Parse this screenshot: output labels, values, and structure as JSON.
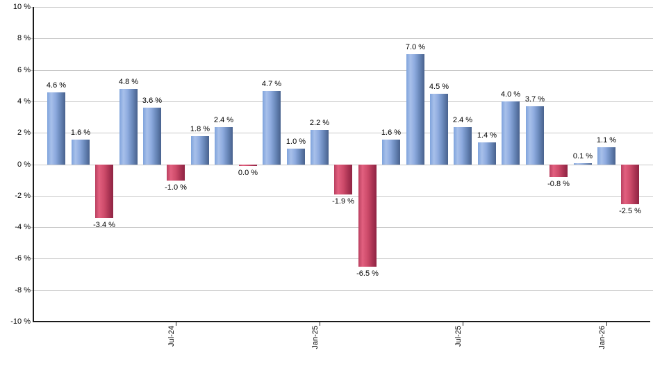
{
  "chart_data": {
    "type": "bar",
    "title": "",
    "unit": "%",
    "ylim": [
      -10,
      10
    ],
    "y_tick_step": 2,
    "grid": true,
    "legend": "none",
    "y_tick_labels": [
      "10 %",
      "8 %",
      "6 %",
      "4 %",
      "2 %",
      "0 %",
      "-2 %",
      "-4 %",
      "-6 %",
      "-8 %",
      "-10 %"
    ],
    "x_tick_labels": [
      {
        "bar_index": 5,
        "label": "Jul-24"
      },
      {
        "bar_index": 11,
        "label": "Jan-25"
      },
      {
        "bar_index": 17,
        "label": "Jul-25"
      },
      {
        "bar_index": 23,
        "label": "Jan-26"
      }
    ],
    "bars": [
      {
        "v": 4.6,
        "label": "4.6 %",
        "type": "positive"
      },
      {
        "v": 1.6,
        "label": "1.6 %",
        "type": "positive"
      },
      {
        "v": -3.4,
        "label": "-3.4 %",
        "type": "negative"
      },
      {
        "v": 4.8,
        "label": "4.8 %",
        "type": "positive"
      },
      {
        "v": 3.6,
        "label": "3.6 %",
        "type": "positive"
      },
      {
        "v": -1.0,
        "label": "-1.0 %",
        "type": "negative"
      },
      {
        "v": 1.8,
        "label": "1.8 %",
        "type": "positive"
      },
      {
        "v": 2.4,
        "label": "2.4 %",
        "type": "positive"
      },
      {
        "v": 0.0,
        "label": "0.0 %",
        "type": "negative"
      },
      {
        "v": 4.7,
        "label": "4.7 %",
        "type": "positive"
      },
      {
        "v": 1.0,
        "label": "1.0 %",
        "type": "positive"
      },
      {
        "v": 2.2,
        "label": "2.2 %",
        "type": "positive"
      },
      {
        "v": -1.9,
        "label": "-1.9 %",
        "type": "negative"
      },
      {
        "v": -6.5,
        "label": "-6.5 %",
        "type": "negative"
      },
      {
        "v": 1.6,
        "label": "1.6 %",
        "type": "positive"
      },
      {
        "v": 7.0,
        "label": "7.0 %",
        "type": "positive"
      },
      {
        "v": 4.5,
        "label": "4.5 %",
        "type": "positive"
      },
      {
        "v": 2.4,
        "label": "2.4 %",
        "type": "positive"
      },
      {
        "v": 1.4,
        "label": "1.4 %",
        "type": "positive"
      },
      {
        "v": 4.0,
        "label": "4.0 %",
        "type": "positive"
      },
      {
        "v": 3.7,
        "label": "3.7 %",
        "type": "positive"
      },
      {
        "v": -0.8,
        "label": "-0.8 %",
        "type": "negative"
      },
      {
        "v": 0.1,
        "label": "0.1 %",
        "type": "positive"
      },
      {
        "v": 1.1,
        "label": "1.1 %",
        "type": "positive"
      },
      {
        "v": -2.5,
        "label": "-2.5 %",
        "type": "negative"
      }
    ],
    "colors": {
      "positive_bar_light": "#a8c0ea",
      "positive_bar_mid": "#7fa3dc",
      "positive_bar_dark": "#48618d",
      "negative_bar_light": "#e2607f",
      "negative_bar_mid": "#cc4a69",
      "negative_bar_dark": "#8f2443",
      "gridline": "#c9c9c9",
      "axis": "#1a1a1a",
      "background": "#ffffff",
      "label_text": "#000000"
    }
  }
}
